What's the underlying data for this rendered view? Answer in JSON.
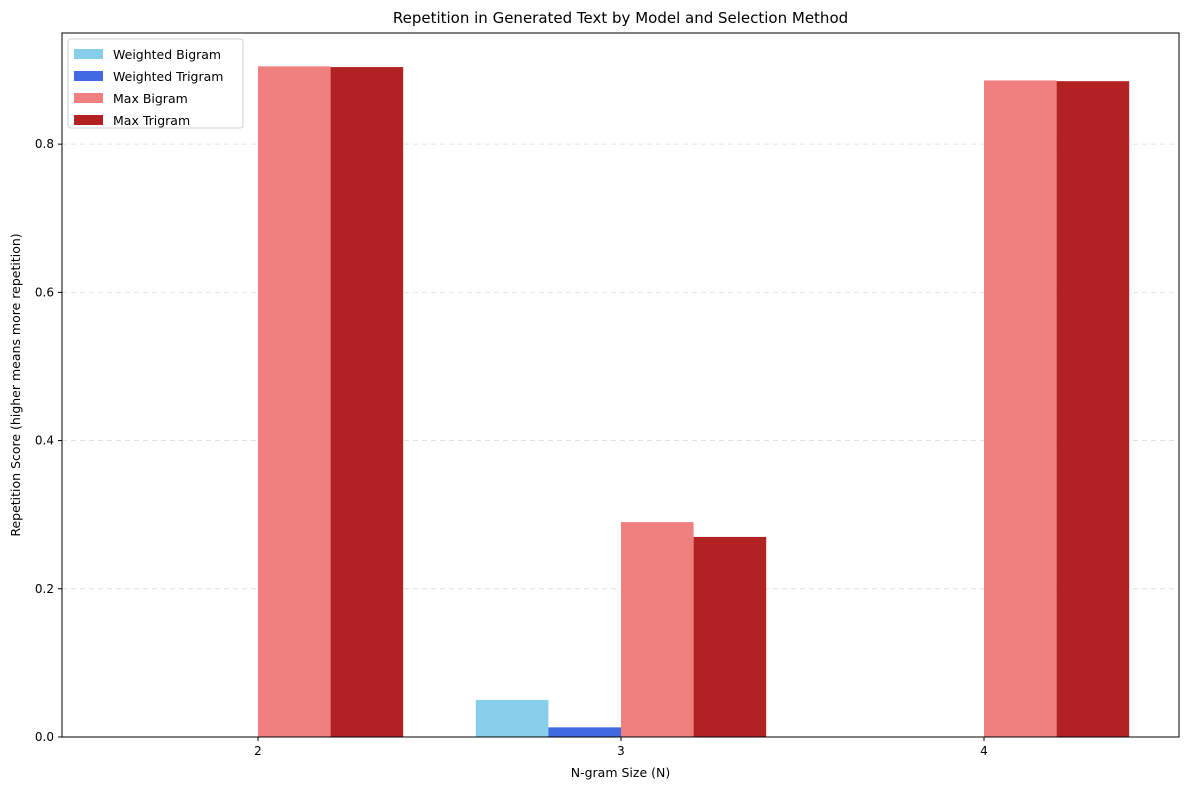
{
  "chart_data": {
    "type": "bar",
    "title": "Repetition in Generated Text by Model and Selection Method",
    "xlabel": "N-gram Size (N)",
    "ylabel": "Repetition Score (higher means more repetition)",
    "categories": [
      "2",
      "3",
      "4"
    ],
    "series": [
      {
        "name": "Weighted Bigram",
        "color": "#87ceeb",
        "values": [
          0,
          0.05,
          0
        ]
      },
      {
        "name": "Weighted Trigram",
        "color": "#4169e1",
        "values": [
          0,
          0.013,
          0
        ]
      },
      {
        "name": "Max Bigram",
        "color": "#f08080",
        "values": [
          0.905,
          0.29,
          0.886
        ]
      },
      {
        "name": "Max Trigram",
        "color": "#b22222",
        "values": [
          0.904,
          0.27,
          0.885
        ]
      }
    ],
    "ylim": [
      0,
      0.95
    ],
    "yticks": [
      0.0,
      0.2,
      0.4,
      0.6,
      0.8
    ],
    "ytick_labels": [
      "0.0",
      "0.2",
      "0.4",
      "0.6",
      "0.8"
    ],
    "grid": "y-dashed",
    "legend_position": "top-left"
  }
}
